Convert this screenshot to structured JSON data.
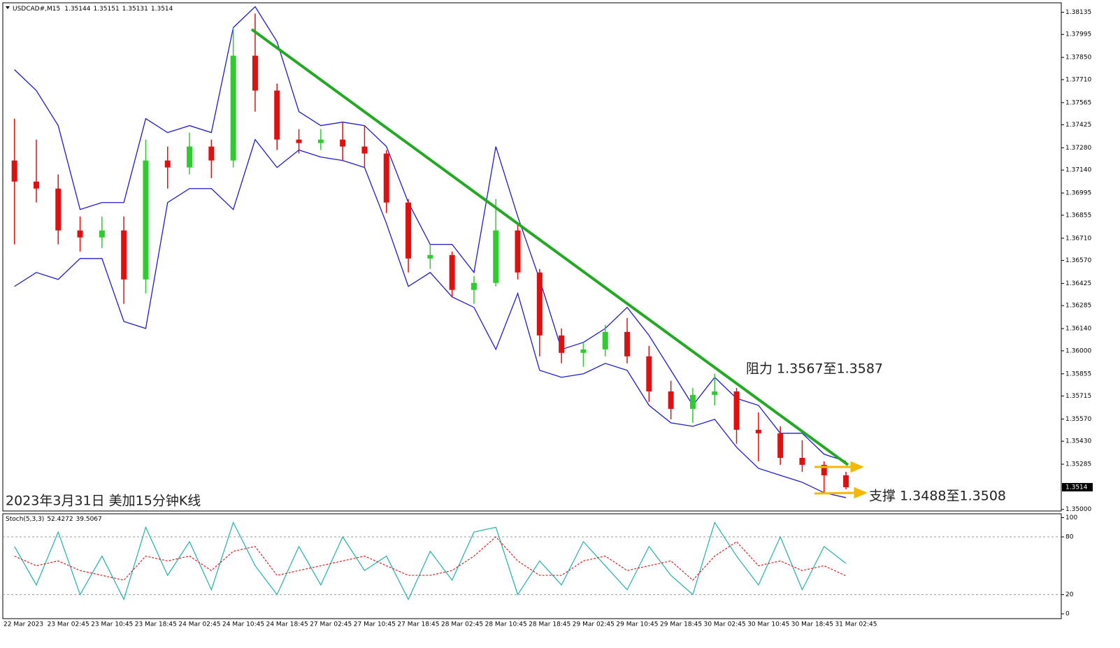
{
  "chart_data": [
    {
      "type": "candlestick",
      "symbol": "USDCAD#,M15",
      "quote": [
        1.35144,
        1.35151,
        1.35131,
        1.3514
      ],
      "categories": [
        "22 Mar 2023",
        null,
        "23 Mar 02:45",
        null,
        "23 Mar 10:45",
        null,
        "23 Mar 18:45",
        null,
        "24 Mar 02:45",
        null,
        "24 Mar 10:45",
        null,
        "24 Mar 18:45",
        null,
        "27 Mar 02:45",
        null,
        "27 Mar 10:45",
        null,
        "27 Mar 18:45",
        null,
        "28 Mar 02:45",
        null,
        "28 Mar 10:45",
        null,
        "28 Mar 18:45",
        null,
        "29 Mar 02:45",
        null,
        "29 Mar 10:45",
        null,
        "29 Mar 18:45",
        null,
        "30 Mar 02:45",
        null,
        "30 Mar 10:45",
        null,
        "30 Mar 18:45",
        null,
        "31 Mar 02:45"
      ],
      "open": [
        1.372,
        1.37067,
        1.37023,
        1.36759,
        1.36715,
        1.36759,
        1.3645,
        1.372,
        1.37156,
        1.37288,
        1.372,
        1.37861,
        1.37641,
        1.37332,
        1.3731,
        1.37332,
        1.37288,
        1.37244,
        1.36935,
        1.36582,
        1.36604,
        1.36384,
        1.36428,
        1.36759,
        1.36494,
        1.36097,
        1.35987,
        1.36009,
        1.36119,
        1.35965,
        1.35744,
        1.35634,
        1.35722,
        1.35744,
        1.35502,
        1.3548,
        1.35325,
        1.35281,
        1.35215
      ],
      "high": [
        1.37464,
        1.37332,
        1.37112,
        1.36847,
        1.36847,
        1.36847,
        1.37332,
        1.37288,
        1.37376,
        1.37332,
        1.38038,
        1.38126,
        1.37685,
        1.37398,
        1.37398,
        1.37442,
        1.3742,
        1.37266,
        1.36957,
        1.36671,
        1.36626,
        1.36472,
        1.36957,
        1.36803,
        1.36516,
        1.36141,
        1.36053,
        1.36163,
        1.36207,
        1.36031,
        1.35811,
        1.35766,
        1.35855,
        1.35766,
        1.35612,
        1.35524,
        1.35436,
        1.35303,
        1.35237
      ],
      "low": [
        1.36671,
        1.36935,
        1.36671,
        1.36626,
        1.36648,
        1.36296,
        1.36362,
        1.37023,
        1.37112,
        1.37089,
        1.37156,
        1.37508,
        1.37266,
        1.37244,
        1.37266,
        1.372,
        1.37156,
        1.36869,
        1.36494,
        1.36516,
        1.3634,
        1.36296,
        1.36406,
        1.3645,
        1.35965,
        1.35921,
        1.35899,
        1.35965,
        1.35921,
        1.35678,
        1.35568,
        1.35546,
        1.35656,
        1.35414,
        1.35303,
        1.35281,
        1.35237,
        1.35105,
        1.35127
      ],
      "close": [
        1.37067,
        1.37023,
        1.36759,
        1.36715,
        1.36759,
        1.3645,
        1.372,
        1.37156,
        1.37288,
        1.372,
        1.37861,
        1.37641,
        1.37332,
        1.3731,
        1.37332,
        1.37288,
        1.37244,
        1.36935,
        1.36582,
        1.36604,
        1.36384,
        1.36428,
        1.36759,
        1.36494,
        1.36097,
        1.35987,
        1.36009,
        1.36119,
        1.35965,
        1.35744,
        1.35634,
        1.35722,
        1.35744,
        1.35502,
        1.3548,
        1.35325,
        1.35281,
        1.35215,
        1.3514
      ],
      "up_color": "#2ecc2e",
      "down_color": "#e01010",
      "series": [
        {
          "color": "#1c1cd6",
          "values": [
            1.37773,
            1.37641,
            1.3742,
            1.36891,
            1.36935,
            1.36935,
            1.37464,
            1.37376,
            1.3742,
            1.37376,
            1.38038,
            1.3817,
            1.37949,
            1.37508,
            1.3742,
            1.37442,
            1.3742,
            1.37288,
            1.36935,
            1.36671,
            1.36671,
            1.36494,
            1.37288,
            1.36847,
            1.3645,
            1.36009,
            1.36053,
            1.36141,
            1.36274,
            1.36097,
            1.35877,
            1.35656,
            1.35833,
            1.357,
            1.35656,
            1.3548,
            1.3548,
            1.35348,
            1.35303
          ]
        },
        {
          "color": "#1c1cd6",
          "values": [
            1.36406,
            1.36494,
            1.3645,
            1.36582,
            1.36582,
            1.36185,
            1.36141,
            1.36935,
            1.37023,
            1.37023,
            1.36891,
            1.37332,
            1.37156,
            1.37266,
            1.37222,
            1.372,
            1.37156,
            1.36803,
            1.36406,
            1.36494,
            1.3634,
            1.36274,
            1.36009,
            1.36362,
            1.35877,
            1.35833,
            1.35855,
            1.35921,
            1.35877,
            1.35656,
            1.35546,
            1.35524,
            1.35568,
            1.35392,
            1.35259,
            1.35215,
            1.35171,
            1.35105,
            1.35074
          ]
        }
      ],
      "ylim": [
        1.3499,
        1.3819
      ],
      "yticks": [
        1.38135,
        1.37995,
        {
          "value": 1.3785,
          "label": "1.37850"
        },
        {
          "value": 1.3771,
          "label": "1.37710"
        },
        1.37565,
        1.37425,
        {
          "value": 1.3728,
          "label": "1.37280"
        },
        {
          "value": 1.3714,
          "label": "1.37140"
        },
        1.36995,
        1.36855,
        {
          "value": 1.3671,
          "label": "1.36710"
        },
        {
          "value": 1.3657,
          "label": "1.36570"
        },
        1.36425,
        1.36285,
        {
          "value": 1.3614,
          "label": "1.36140"
        },
        {
          "value": 1.36,
          "label": "1.36000"
        },
        1.35855,
        1.35715,
        {
          "value": 1.3557,
          "label": "1.35570"
        },
        {
          "value": 1.3543,
          "label": "1.35430"
        },
        1.35285,
        {
          "value": 1.35,
          "label": "1.35000"
        }
      ],
      "annotations": [
        "阻力 1.3567至1.3587",
        "支撑 1.3488至1.3508",
        "2023年3月31日 美加15分钟K线"
      ]
    },
    {
      "type": "line",
      "title": "Stoch(5,3,3)",
      "series": [
        {
          "color": "#20b2aa",
          "values": [
            70,
            30,
            85,
            20,
            60,
            15,
            90,
            40,
            75,
            25,
            95,
            50,
            20,
            70,
            30,
            80,
            45,
            60,
            15,
            65,
            35,
            85,
            90,
            20,
            55,
            30,
            75,
            50,
            25,
            70,
            40,
            20,
            95,
            60,
            30,
            80,
            25,
            70,
            52.4272
          ]
        },
        {
          "color": "#e02020",
          "values": [
            60,
            50,
            55,
            45,
            40,
            35,
            60,
            55,
            60,
            45,
            65,
            70,
            40,
            45,
            50,
            55,
            60,
            50,
            40,
            40,
            45,
            60,
            80,
            55,
            40,
            40,
            55,
            60,
            45,
            50,
            55,
            35,
            60,
            75,
            50,
            55,
            45,
            50,
            39.5067
          ]
        }
      ],
      "ylim": [
        -5,
        104
      ],
      "yticks": [
        100,
        80,
        20,
        0
      ],
      "levels": [
        80,
        20
      ]
    }
  ]
}
